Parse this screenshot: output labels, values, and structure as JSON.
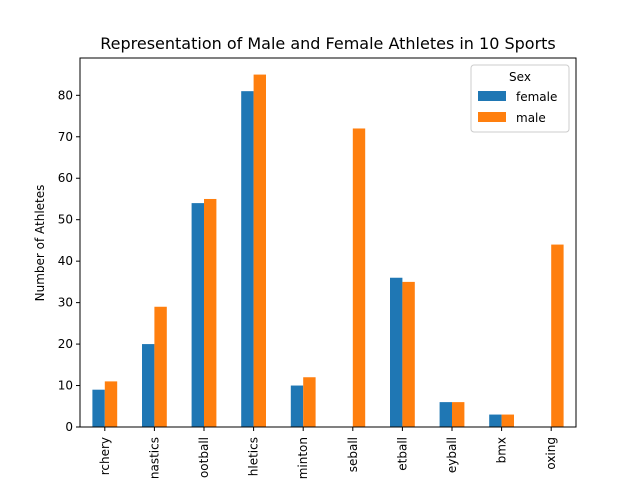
{
  "chart_data": {
    "type": "bar",
    "title": "Representation of Male and Female Athletes in 10 Sports",
    "xlabel": "",
    "ylabel": "Number of Athletes",
    "categories": [
      "archery",
      "artistic gymnastics",
      "artistic swimming / football",
      "athletics",
      "badminton",
      "baseball",
      "basketball",
      "beach volleyball",
      "bmx",
      "boxing"
    ],
    "category_labels_visible": [
      "rchery",
      "nastics",
      "ootball",
      "hletics",
      "minton",
      "seball",
      "etball",
      "eyball",
      "bmx",
      "oxing"
    ],
    "series": [
      {
        "name": "female",
        "color": "#1f77b4",
        "values": [
          9,
          20,
          54,
          81,
          10,
          0,
          36,
          6,
          3,
          0
        ]
      },
      {
        "name": "male",
        "color": "#ff7f0e",
        "values": [
          11,
          29,
          55,
          85,
          12,
          72,
          35,
          6,
          3,
          44
        ]
      }
    ],
    "ylim": [
      0,
      89
    ],
    "yticks": [
      0,
      10,
      20,
      30,
      40,
      50,
      60,
      70,
      80
    ],
    "grid": false,
    "legend": {
      "title": "Sex",
      "placement": "top-right"
    }
  }
}
